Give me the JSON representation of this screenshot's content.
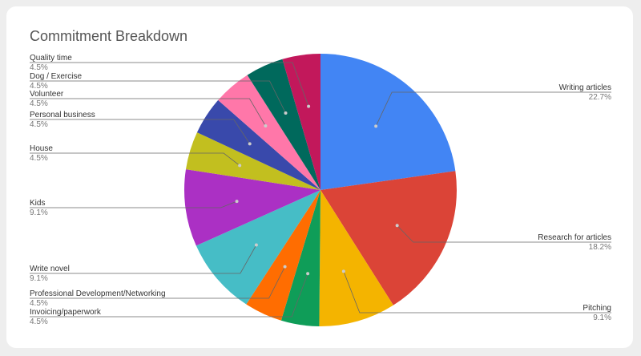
{
  "chart_data": {
    "type": "pie",
    "title": "Commitment Breakdown",
    "slices": [
      {
        "label": "Writing articles",
        "value": 22.7,
        "display": "22.7%",
        "color": "#4285f4"
      },
      {
        "label": "Research for articles",
        "value": 18.2,
        "display": "18.2%",
        "color": "#db4437"
      },
      {
        "label": "Pitching",
        "value": 9.1,
        "display": "9.1%",
        "color": "#f4b400"
      },
      {
        "label": "Invoicing/paperwork",
        "value": 4.5,
        "display": "4.5%",
        "color": "#0f9d58"
      },
      {
        "label": "Professional Development/Networking",
        "value": 4.5,
        "display": "4.5%",
        "color": "#ff6d01"
      },
      {
        "label": "Write novel",
        "value": 9.1,
        "display": "9.1%",
        "color": "#46bdc6"
      },
      {
        "label": "Kids",
        "value": 9.1,
        "display": "9.1%",
        "color": "#ab30c4"
      },
      {
        "label": "House",
        "value": 4.5,
        "display": "4.5%",
        "color": "#c2bf1f"
      },
      {
        "label": "Personal business",
        "value": 4.5,
        "display": "4.5%",
        "color": "#3949ab"
      },
      {
        "label": "Volunteer",
        "value": 4.5,
        "display": "4.5%",
        "color": "#ff77a9"
      },
      {
        "label": "Dog / Exercise",
        "value": 4.5,
        "display": "4.5%",
        "color": "#00695c"
      },
      {
        "label": "Quality time",
        "value": 4.5,
        "display": "4.5%",
        "color": "#c2185b"
      }
    ]
  }
}
